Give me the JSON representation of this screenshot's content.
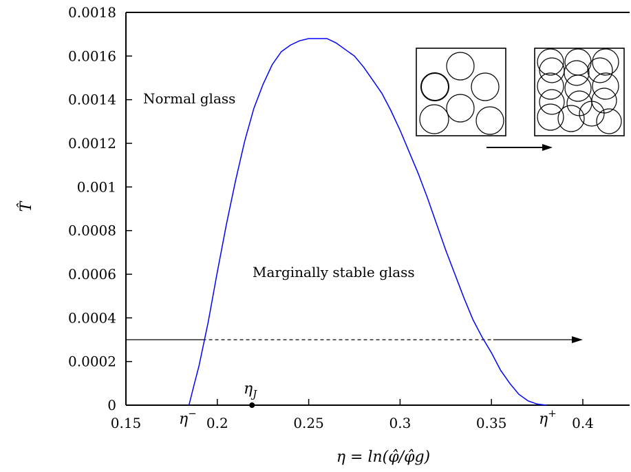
{
  "chart_data": {
    "type": "line",
    "xlabel": "η = ln(φ̂/φ̂g)",
    "ylabel": "T̂",
    "xlim": [
      0.15,
      0.4
    ],
    "ylim": [
      0,
      0.0018
    ],
    "x_ticks": [
      0.15,
      0.2,
      0.25,
      0.3,
      0.35,
      0.4
    ],
    "x_tick_labels": [
      "0.15",
      "0.2",
      "0.25",
      "0.3",
      "0.35",
      "0.4"
    ],
    "y_ticks": [
      0,
      0.0002,
      0.0004,
      0.0006,
      0.0008,
      0.001,
      0.0012,
      0.0014,
      0.0016,
      0.0018
    ],
    "y_tick_labels": [
      "0",
      "0.0002",
      "0.0004",
      "0.0006",
      "0.0008",
      "0.001",
      "0.0012",
      "0.0014",
      "0.0016",
      "0.0018"
    ],
    "grid": false,
    "series": [
      {
        "color": "#0000ff",
        "x": [
          0.1845,
          0.1875,
          0.19,
          0.195,
          0.2,
          0.205,
          0.21,
          0.215,
          0.22,
          0.225,
          0.23,
          0.235,
          0.24,
          0.245,
          0.25,
          0.255,
          0.258,
          0.26,
          0.265,
          0.27,
          0.275,
          0.28,
          0.285,
          0.29,
          0.295,
          0.3,
          0.305,
          0.31,
          0.315,
          0.32,
          0.325,
          0.33,
          0.335,
          0.34,
          0.345,
          0.35,
          0.355,
          0.36,
          0.365,
          0.37,
          0.375,
          0.38
        ],
        "y": [
          0,
          0.0001,
          0.00018,
          0.00038,
          0.00061,
          0.00083,
          0.00103,
          0.00121,
          0.00136,
          0.00147,
          0.00156,
          0.00162,
          0.00165,
          0.00167,
          0.00168,
          0.00168,
          0.00168,
          0.00168,
          0.00166,
          0.00163,
          0.0016,
          0.00155,
          0.00149,
          0.00143,
          0.00135,
          0.00126,
          0.00116,
          0.00106,
          0.00095,
          0.00083,
          0.00071,
          0.0006,
          0.00049,
          0.00039,
          0.00031,
          0.00024,
          0.00016,
          0.0001,
          5e-05,
          2e-05,
          5e-06,
          0
        ]
      }
    ],
    "arrow": {
      "y": 0.0003,
      "x_start": 0.15,
      "x_end": 0.4,
      "dashed_from": 0.192,
      "dashed_to": 0.351
    },
    "eta_j": {
      "x": 0.219,
      "y": 0
    }
  },
  "annotations": {
    "normal_glass": "Normal glass",
    "marginal_glass": "Marginally stable glass",
    "eta_minus": "η",
    "eta_minus_sup": "−",
    "eta_plus": "η",
    "eta_plus_sup": "+",
    "eta_j": "η",
    "eta_j_sub": "J"
  },
  "colors": {
    "curve": "#0000ff",
    "axes": "#000000"
  }
}
